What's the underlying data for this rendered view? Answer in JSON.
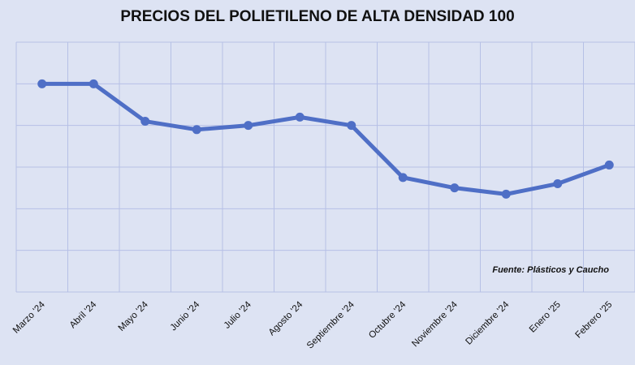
{
  "chart_data": {
    "type": "line",
    "title": "PRECIOS DEL POLIETILENO DE ALTA DENSIDAD 100",
    "xlabel": "",
    "ylabel": "",
    "categories": [
      "Marzo '24",
      "Abril '24",
      "Mayo '24",
      "Junio '24",
      "Julio '24",
      "Agosto '24",
      "Septiembre '24",
      "Octubre '24",
      "Noviembre '24",
      "Diciembre '24",
      "Enero '25",
      "Febrero '25"
    ],
    "series": [
      {
        "values": [
          5.0,
          5.0,
          4.1,
          3.9,
          4.0,
          4.2,
          4.0,
          2.75,
          2.5,
          2.35,
          2.6,
          3.05
        ],
        "color": "#4f6fc6"
      }
    ],
    "ylim": [
      0,
      6
    ],
    "yticks_shown": false,
    "grid": true,
    "legend": "none",
    "annotation": "Fuente: Plásticos y Caucho",
    "colors": {
      "background": "#dde3f3",
      "grid": "#b6c0e6",
      "line": "#4f6fc6"
    }
  }
}
